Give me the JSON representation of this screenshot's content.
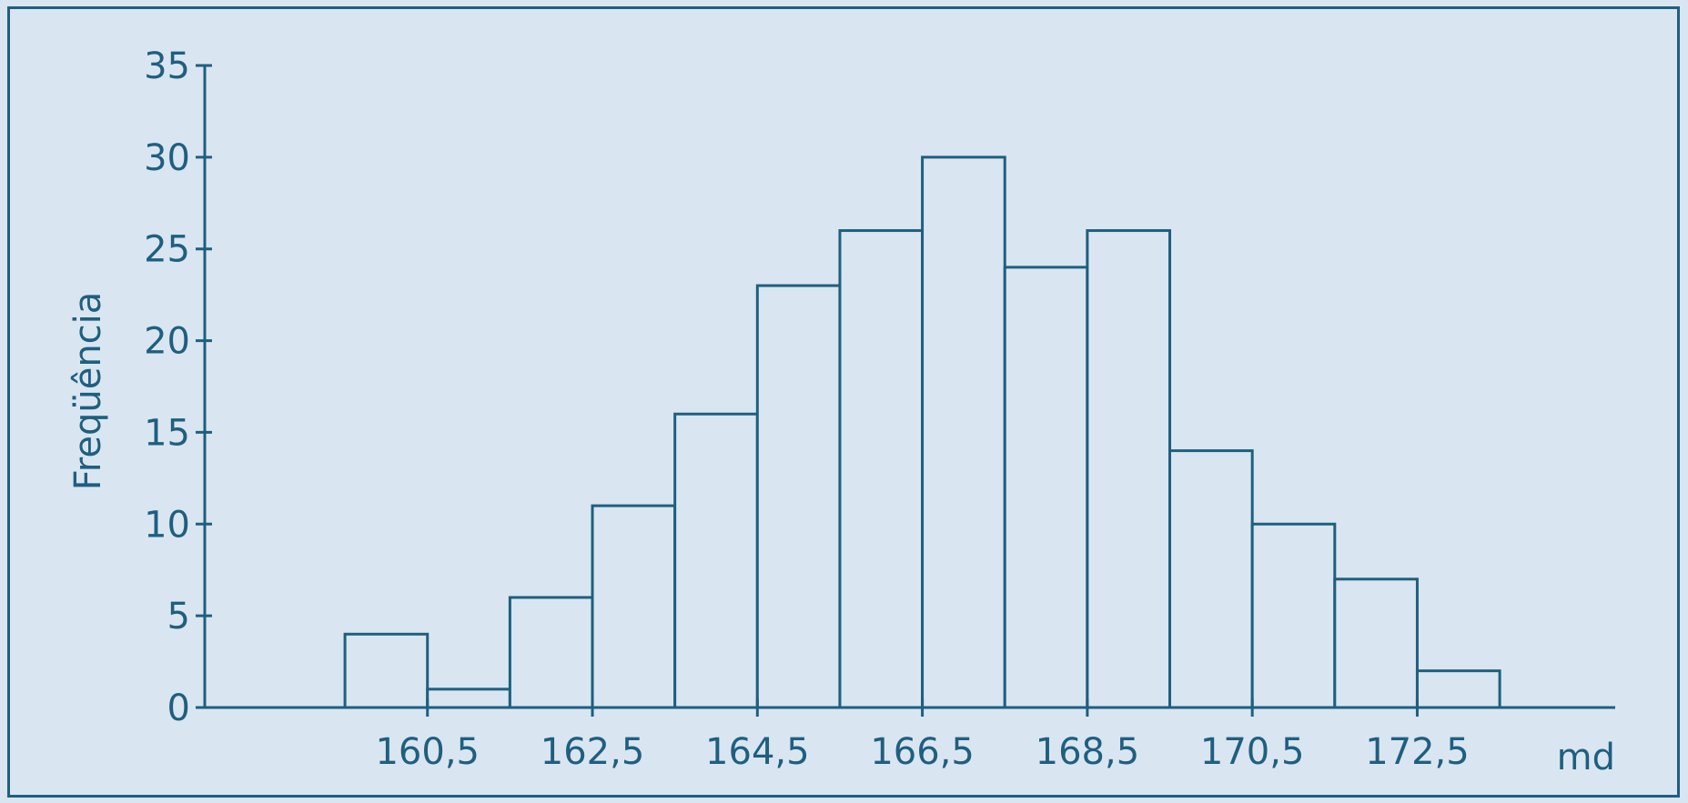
{
  "chart_data": {
    "type": "bar",
    "subtype": "histogram",
    "title": "",
    "xlabel": "md",
    "ylabel": "Freqüência",
    "bin_width": 1,
    "bins_start": [
      159.5,
      160.5,
      161.5,
      162.5,
      163.5,
      164.5,
      165.5,
      166.5,
      167.5,
      168.5,
      169.5,
      170.5,
      171.5,
      172.5
    ],
    "values": [
      4,
      1,
      6,
      11,
      16,
      23,
      26,
      30,
      24,
      26,
      14,
      10,
      7,
      2
    ],
    "x_ticks": [
      160.5,
      162.5,
      164.5,
      166.5,
      168.5,
      170.5,
      172.5
    ],
    "x_tick_labels": [
      "160,5",
      "162,5",
      "164,5",
      "166,5",
      "168,5",
      "170,5",
      "172,5"
    ],
    "y_ticks": [
      0,
      5,
      10,
      15,
      20,
      25,
      30,
      35
    ],
    "y_tick_labels": [
      "0",
      "5",
      "10",
      "15",
      "20",
      "25",
      "30",
      "35"
    ],
    "xlim": [
      157.8,
      174.9
    ],
    "ylim": [
      0,
      35
    ],
    "grid": false,
    "colors": {
      "line": "#1f5f80",
      "background": "#d9e6f1"
    }
  }
}
